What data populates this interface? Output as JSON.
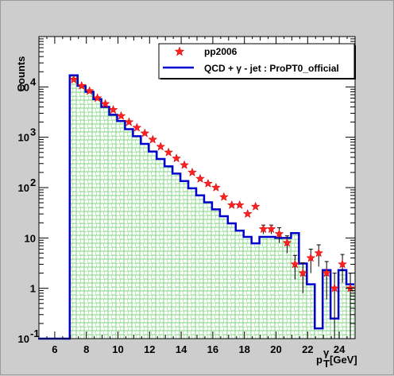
{
  "chart_data": {
    "type": "histogram",
    "xlabel_main": "p",
    "xlabel_sub": "T",
    "xlabel_sup": "γ",
    "xlabel_unit": "[GeV]",
    "ylabel": "Counts",
    "xlim": [
      5,
      25
    ],
    "ylog": true,
    "ylim": [
      0.1,
      100000
    ],
    "x_ticks": [
      "6",
      "8",
      "10",
      "12",
      "14",
      "16",
      "18",
      "20",
      "22",
      "24"
    ],
    "y_ticks": [
      {
        "val": 0.1,
        "base": "10",
        "exp": "-1"
      },
      {
        "val": 1,
        "base": "1",
        "exp": ""
      },
      {
        "val": 10,
        "base": "10",
        "exp": ""
      },
      {
        "val": 100,
        "base": "10",
        "exp": "2"
      },
      {
        "val": 1000,
        "base": "10",
        "exp": "3"
      },
      {
        "val": 10000,
        "base": "10",
        "exp": "4"
      }
    ],
    "legend": {
      "placement": "top-right",
      "entries": [
        {
          "label": "pp2006",
          "marker": "star",
          "color": "#ff2222"
        },
        {
          "label": "QCD + γ - jet : ProPT0_official",
          "marker": "line",
          "color": "#0000cc"
        }
      ]
    },
    "mc_series": {
      "name": "QCD + γ - jet : ProPT0_official",
      "line_color": "#0000cc",
      "fill_color": "#7fd47f",
      "bin_edges": [
        4.95,
        5.45,
        5.95,
        6.45,
        6.95,
        7.45,
        7.95,
        8.45,
        8.95,
        9.45,
        9.95,
        10.45,
        10.95,
        11.45,
        11.95,
        12.45,
        12.95,
        13.45,
        13.95,
        14.45,
        14.95,
        15.45,
        15.95,
        16.45,
        16.95,
        17.45,
        17.95,
        18.45,
        18.95,
        19.45,
        19.95,
        20.45,
        20.95,
        21.45,
        21.95,
        22.45,
        22.95,
        23.45,
        23.95,
        24.45,
        24.95
      ],
      "values": [
        0.1,
        0.1,
        0.1,
        0.1,
        17000,
        10500,
        8000,
        5700,
        4000,
        2800,
        2100,
        1450,
        1050,
        740,
        520,
        370,
        265,
        190,
        135,
        97,
        70,
        51,
        37,
        27,
        19.5,
        14,
        10.5,
        7.8,
        10.5,
        10.5,
        10,
        10,
        12.5,
        3.1,
        1.2,
        0.16,
        2.3,
        0.25,
        2.3,
        1.2
      ]
    },
    "data_series": {
      "name": "pp2006",
      "color": "#ff2222",
      "points": [
        {
          "x": 7.2,
          "y": 14000
        },
        {
          "x": 7.7,
          "y": 10500
        },
        {
          "x": 8.2,
          "y": 8300
        },
        {
          "x": 8.7,
          "y": 6000
        },
        {
          "x": 9.2,
          "y": 4600
        },
        {
          "x": 9.7,
          "y": 3500
        },
        {
          "x": 10.2,
          "y": 2650
        },
        {
          "x": 10.7,
          "y": 2000
        },
        {
          "x": 11.2,
          "y": 1550
        },
        {
          "x": 11.7,
          "y": 1200
        },
        {
          "x": 12.2,
          "y": 900
        },
        {
          "x": 12.7,
          "y": 650
        },
        {
          "x": 13.2,
          "y": 500
        },
        {
          "x": 13.7,
          "y": 380
        },
        {
          "x": 14.2,
          "y": 280
        },
        {
          "x": 14.7,
          "y": 200
        },
        {
          "x": 15.2,
          "y": 150
        },
        {
          "x": 15.7,
          "y": 120
        },
        {
          "x": 16.2,
          "y": 100
        },
        {
          "x": 16.7,
          "y": 65
        },
        {
          "x": 17.2,
          "y": 45
        },
        {
          "x": 17.7,
          "y": 45
        },
        {
          "x": 18.2,
          "y": 30
        },
        {
          "x": 18.7,
          "y": 42
        },
        {
          "x": 19.2,
          "y": 15,
          "err": 3
        },
        {
          "x": 19.7,
          "y": 15,
          "err": 3
        },
        {
          "x": 20.2,
          "y": 12,
          "err": 4
        },
        {
          "x": 20.7,
          "y": 8,
          "err": 3
        },
        {
          "x": 21.2,
          "y": 3,
          "err": 1.5
        },
        {
          "x": 21.7,
          "y": 2,
          "err": 1.2
        },
        {
          "x": 22.2,
          "y": 4,
          "err": 2
        },
        {
          "x": 22.7,
          "y": 5,
          "err": 2.3
        },
        {
          "x": 23.2,
          "y": 2,
          "err": 1.4
        },
        {
          "x": 23.7,
          "y": 1,
          "err": 1
        },
        {
          "x": 24.2,
          "y": 3,
          "err": 1.7
        },
        {
          "x": 24.7,
          "y": 1,
          "err": 1
        }
      ]
    }
  }
}
